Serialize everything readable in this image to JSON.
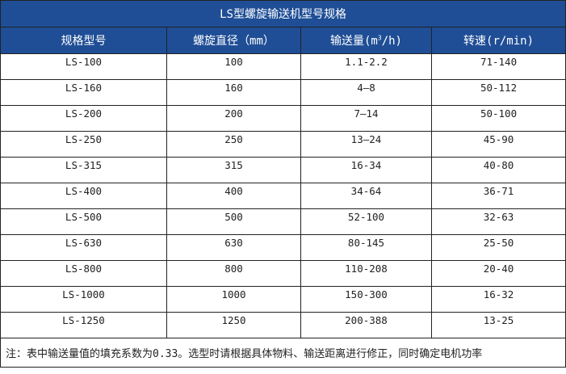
{
  "title": "LS型螺旋输送机型号规格",
  "headers": [
    "规格型号",
    "螺旋直径（mm）",
    "输送量(m",
    "转速(r/min)"
  ],
  "header_sup": "3",
  "header_tail": "/h)",
  "rows": [
    [
      "LS-100",
      "100",
      "1.1-2.2",
      "71-140"
    ],
    [
      "LS-160",
      "160",
      "4—8",
      "50-112"
    ],
    [
      "LS-200",
      "200",
      "7—14",
      "50-100"
    ],
    [
      "LS-250",
      "250",
      "13—24",
      "45-90"
    ],
    [
      "LS-315",
      "315",
      "16-34",
      "40-80"
    ],
    [
      "LS-400",
      "400",
      "34-64",
      "36-71"
    ],
    [
      "LS-500",
      "500",
      "52-100",
      "32-63"
    ],
    [
      "LS-630",
      "630",
      "80-145",
      "25-50"
    ],
    [
      "LS-800",
      "800",
      "110-208",
      "20-40"
    ],
    [
      "LS-1000",
      "1000",
      "150-300",
      "16-32"
    ],
    [
      "LS-1250",
      "1250",
      "200-388",
      "13-25"
    ]
  ],
  "note": "注：表中输送量值的填充系数为0.33。选型时请根据具体物料、输送距离进行修正，同时确定电机功率",
  "colors": {
    "header_bg": "#1f4e96"
  }
}
